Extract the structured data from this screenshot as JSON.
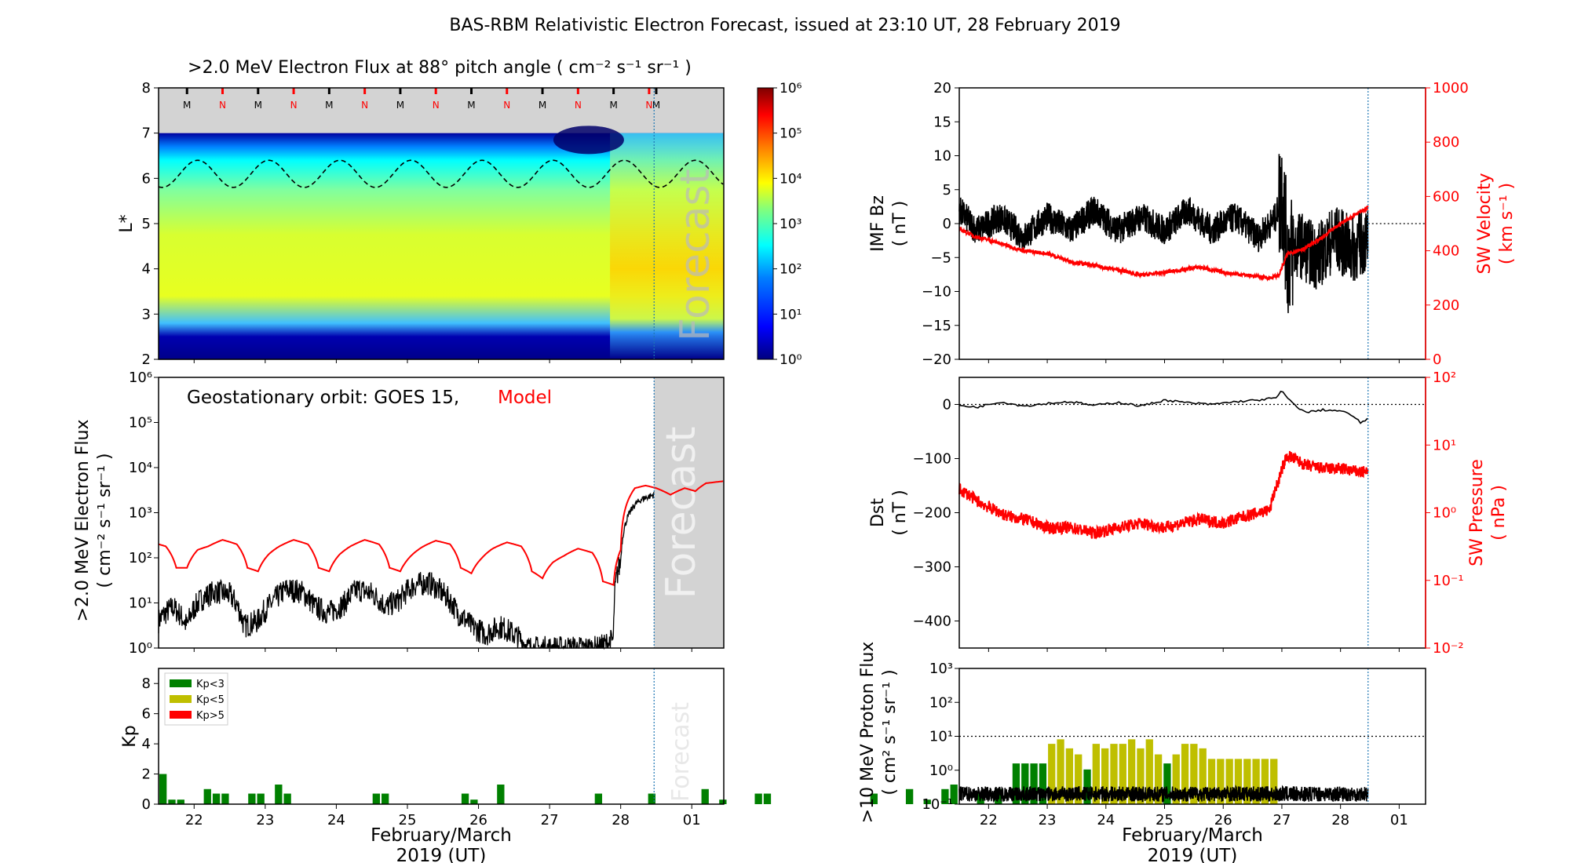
{
  "figure_title": "BAS-RBM Relativistic Electron Forecast, issued at 23:10 UT, 28 February 2019",
  "colors": {
    "model": "#ff0000",
    "obs": "#000000",
    "forecast_shade": "#d3d3d3",
    "kp_low": "#008000",
    "kp_mid": "#bfbf00",
    "kp_high": "#ff0000",
    "forecast_line": "#1f77b4"
  },
  "chart_data": [
    {
      "id": "flux_map",
      "type": "heatmap",
      "title": ">2.0 MeV Electron Flux at 88° pitch angle ( cm⁻² s⁻¹ sr⁻¹ )",
      "ylabel": "L*",
      "ylim": [
        2,
        8
      ],
      "yticks": [
        "2",
        "3",
        "4",
        "5",
        "6",
        "7",
        "8"
      ],
      "xlim": [
        21.5,
        29.45
      ],
      "forecast_start": 28.47,
      "forecast_label": "Forecast",
      "colorbar": {
        "scale": "log",
        "range": [
          1,
          1000000
        ],
        "ticks": [
          "10⁰",
          "10¹",
          "10²",
          "10³",
          "10⁴",
          "10⁵",
          "10⁶"
        ]
      },
      "mn_markers": [
        {
          "x": 21.9,
          "label": "M"
        },
        {
          "x": 22.4,
          "label": "N"
        },
        {
          "x": 22.9,
          "label": "M"
        },
        {
          "x": 23.4,
          "label": "N"
        },
        {
          "x": 23.9,
          "label": "M"
        },
        {
          "x": 24.4,
          "label": "N"
        },
        {
          "x": 24.9,
          "label": "M"
        },
        {
          "x": 25.4,
          "label": "N"
        },
        {
          "x": 25.9,
          "label": "M"
        },
        {
          "x": 26.4,
          "label": "N"
        },
        {
          "x": 26.9,
          "label": "M"
        },
        {
          "x": 27.4,
          "label": "N"
        },
        {
          "x": 27.9,
          "label": "M"
        },
        {
          "x": 28.4,
          "label": "N"
        },
        {
          "x": 28.5,
          "label": "M"
        }
      ],
      "geo_orbit_L_mean": 6.1,
      "geo_orbit_L_amp": 0.3
    },
    {
      "id": "geo_flux",
      "type": "line",
      "ylabel": ">2.0 MeV Electron Flux ( cm⁻² s⁻¹ sr⁻¹ )",
      "yscale": "log",
      "ylim": [
        1,
        1000000
      ],
      "yticks": [
        "10⁰",
        "10¹",
        "10²",
        "10³",
        "10⁴",
        "10⁵",
        "10⁶"
      ],
      "xlim": [
        21.5,
        29.45
      ],
      "annotation": "Geostationary orbit:   GOES 15,",
      "annotation_model": "Model",
      "forecast_start": 28.47,
      "forecast_label": "Forecast",
      "series": [
        {
          "name": "GOES 15",
          "x": [
            21.5,
            21.7,
            21.9,
            22.1,
            22.3,
            22.5,
            22.7,
            22.9,
            23.1,
            23.3,
            23.5,
            23.7,
            23.9,
            24.1,
            24.3,
            24.5,
            24.7,
            24.9,
            25.1,
            25.3,
            25.5,
            25.7,
            25.9,
            26.1,
            26.3,
            26.5,
            26.7,
            26.9,
            27.1,
            27.3,
            27.5,
            27.7,
            27.9,
            28.0,
            28.1,
            28.2,
            28.3,
            28.47
          ],
          "y": [
            4,
            8,
            3,
            12,
            18,
            15,
            3,
            4,
            10,
            20,
            18,
            8,
            6,
            9,
            20,
            16,
            8,
            12,
            25,
            28,
            16,
            6,
            3,
            2,
            3,
            2,
            1,
            1,
            1,
            1,
            1,
            1,
            1.5,
            80,
            800,
            1500,
            2000,
            2500
          ]
        },
        {
          "name": "Model",
          "x": [
            21.5,
            21.6,
            21.75,
            21.9,
            22.05,
            22.2,
            22.4,
            22.6,
            22.75,
            22.9,
            23.05,
            23.2,
            23.4,
            23.6,
            23.75,
            23.9,
            24.05,
            24.2,
            24.4,
            24.6,
            24.75,
            24.9,
            25.05,
            25.2,
            25.4,
            25.6,
            25.75,
            25.9,
            26.05,
            26.2,
            26.4,
            26.6,
            26.75,
            26.9,
            27.05,
            27.2,
            27.4,
            27.6,
            27.75,
            27.9,
            28.0,
            28.1,
            28.2,
            28.35,
            28.5,
            28.7,
            28.9,
            29.05,
            29.2,
            29.45
          ],
          "y": [
            200,
            180,
            60,
            60,
            150,
            180,
            250,
            200,
            60,
            50,
            120,
            180,
            250,
            200,
            60,
            50,
            120,
            180,
            250,
            200,
            60,
            50,
            110,
            170,
            240,
            200,
            60,
            45,
            100,
            160,
            220,
            180,
            50,
            35,
            80,
            110,
            160,
            130,
            30,
            25,
            150,
            1800,
            3500,
            4000,
            3500,
            2500,
            3500,
            3000,
            4500,
            5000
          ]
        }
      ]
    },
    {
      "id": "kp",
      "type": "bar",
      "ylabel": "Kp",
      "ylim": [
        0,
        9
      ],
      "yticks": [
        "0",
        "2",
        "4",
        "6",
        "8"
      ],
      "xlim": [
        21.5,
        29.45
      ],
      "xticks": [
        "22",
        "23",
        "24",
        "25",
        "26",
        "27",
        "28",
        "01"
      ],
      "xlabel": "February/March",
      "xlabel2": "2019 (UT)",
      "forecast_start": 28.47,
      "forecast_label": "Forecast",
      "legend": [
        "Kp<3",
        "Kp<5",
        "Kp>5"
      ],
      "bar_width_days": 0.125,
      "kp_values": [
        2,
        0.3,
        0.3,
        0,
        0,
        1,
        0.7,
        0.7,
        0,
        0,
        0.7,
        0.7,
        0,
        1.3,
        0.7,
        0,
        0,
        0,
        0,
        0,
        0,
        0,
        0,
        0,
        0.7,
        0.7,
        0,
        0,
        0,
        0,
        0,
        0,
        0,
        0,
        0.7,
        0.3,
        0,
        0,
        1.3,
        0,
        0,
        0,
        0,
        0,
        0,
        0,
        0,
        0,
        0,
        0.7,
        0,
        0,
        0,
        0,
        0,
        0.7,
        0,
        0,
        0,
        0,
        0,
        1,
        0,
        0.3,
        0,
        0,
        0,
        0.7,
        0.7,
        0,
        0,
        0,
        0,
        0,
        0,
        0,
        0,
        0,
        0,
        0,
        0.7,
        0,
        0,
        0,
        1,
        0,
        0.3,
        0,
        1,
        1.3,
        0,
        0,
        0.7,
        0,
        1,
        0,
        2.7,
        2.7,
        2.7,
        2.7,
        4,
        4.3,
        3.7,
        3.3,
        2.3,
        4,
        3.7,
        4,
        4,
        4.3,
        3.7,
        4.3,
        3.3,
        2.7,
        3.3,
        4,
        4,
        3.7,
        3,
        3,
        3,
        3,
        3,
        3,
        3,
        3
      ]
    },
    {
      "id": "imf_sw",
      "type": "line",
      "ylabel": "IMF Bz ( nT )",
      "ylabel_right": "SW Velocity ( km s⁻¹ )",
      "ylim": [
        -20,
        20
      ],
      "yticks": [
        "−20",
        "−15",
        "−10",
        "−5",
        "0",
        "5",
        "10",
        "15",
        "20"
      ],
      "ylim_right": [
        0,
        1000
      ],
      "yticks_right": [
        "0",
        "200",
        "400",
        "600",
        "800",
        "1000"
      ],
      "xlim": [
        21.5,
        29.45
      ],
      "forecast_start": 28.47,
      "series": [
        {
          "name": "IMF Bz",
          "x": [
            21.5,
            21.8,
            22.2,
            22.6,
            23.0,
            23.4,
            23.8,
            24.2,
            24.6,
            25.0,
            25.4,
            25.8,
            26.2,
            26.6,
            26.9,
            27.0,
            27.1,
            27.3,
            27.6,
            27.9,
            28.2,
            28.47
          ],
          "y": [
            2,
            -1,
            1,
            -2,
            1,
            -1,
            2,
            -1,
            1,
            -1,
            2,
            -1,
            1,
            -2,
            1,
            5,
            -5,
            -3,
            -5,
            -2,
            -4,
            -2
          ]
        },
        {
          "name": "SW Velocity",
          "x": [
            21.5,
            21.8,
            22.0,
            22.3,
            22.6,
            23.0,
            23.4,
            23.8,
            24.2,
            24.6,
            25.0,
            25.3,
            25.6,
            26.0,
            26.4,
            26.8,
            26.95,
            27.1,
            27.4,
            27.7,
            28.0,
            28.3,
            28.47
          ],
          "y": [
            480,
            450,
            440,
            420,
            400,
            390,
            360,
            345,
            330,
            310,
            320,
            330,
            340,
            320,
            310,
            300,
            310,
            390,
            410,
            450,
            500,
            540,
            560
          ]
        }
      ]
    },
    {
      "id": "dst_pressure",
      "type": "line",
      "ylabel": "Dst ( nT )",
      "ylabel_right": "SW Pressure ( nPa )",
      "ylim": [
        -450,
        50
      ],
      "yticks": [
        "−400",
        "−300",
        "−200",
        "−100",
        "0"
      ],
      "ylim_right": [
        0.01,
        100
      ],
      "yticks_right": [
        "10⁻²",
        "10⁻¹",
        "10⁰",
        "10¹",
        "10²"
      ],
      "xlim": [
        21.5,
        29.45
      ],
      "forecast_start": 28.47,
      "series": [
        {
          "name": "Dst",
          "x": [
            21.5,
            21.8,
            22.2,
            22.6,
            23.0,
            23.4,
            23.8,
            24.2,
            24.6,
            25.0,
            25.4,
            25.8,
            26.2,
            26.6,
            26.9,
            27.0,
            27.15,
            27.4,
            27.7,
            28.0,
            28.2,
            28.35,
            28.47
          ],
          "y": [
            -2,
            -5,
            5,
            -3,
            2,
            5,
            -2,
            4,
            -3,
            8,
            3,
            0,
            5,
            8,
            12,
            25,
            5,
            -15,
            -10,
            -12,
            -20,
            -35,
            -25
          ]
        },
        {
          "name": "SW Pressure",
          "x": [
            21.5,
            21.8,
            22.0,
            22.3,
            22.6,
            23.0,
            23.4,
            23.8,
            24.2,
            24.6,
            25.0,
            25.3,
            25.6,
            26.0,
            26.4,
            26.8,
            26.95,
            27.1,
            27.4,
            27.7,
            28.0,
            28.3,
            28.47
          ],
          "y": [
            2.2,
            1.5,
            1.2,
            0.9,
            0.8,
            0.6,
            0.6,
            0.5,
            0.6,
            0.7,
            0.6,
            0.7,
            0.8,
            0.7,
            0.9,
            1.1,
            3,
            7,
            5,
            4.5,
            4.5,
            4,
            4
          ]
        }
      ]
    },
    {
      "id": "proton",
      "type": "line",
      "ylabel": ">10 MeV Proton Flux ( cm² s⁻¹ sr⁻¹ )",
      "yscale": "log",
      "ylim": [
        0.1,
        1000
      ],
      "yticks": [
        "10⁻¹",
        "10⁰",
        "10¹",
        "10²",
        "10³"
      ],
      "threshold": 10,
      "xlim": [
        21.5,
        29.45
      ],
      "xticks": [
        "22",
        "23",
        "24",
        "25",
        "26",
        "27",
        "28",
        "01"
      ],
      "xlabel": "February/March",
      "xlabel2": "2019 (UT)",
      "forecast_start": 28.47,
      "series": [
        {
          "name": "Proton",
          "level": 0.18
        }
      ]
    }
  ]
}
